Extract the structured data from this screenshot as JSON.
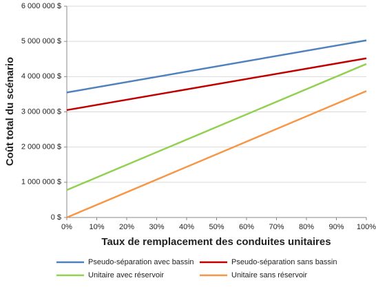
{
  "chart_data": {
    "type": "line",
    "x_label": "Taux de remplacement des conduites unitaires",
    "y_label": "Coût total du scénario",
    "x": [
      0,
      100
    ],
    "series": [
      {
        "name": "Pseudo-séparation avec bassin",
        "color": "#4f81bd",
        "values": [
          3550000,
          5030000
        ]
      },
      {
        "name": "Pseudo-séparation sans bassin",
        "color": "#c00000",
        "values": [
          3050000,
          4520000
        ]
      },
      {
        "name": "Unitaire avec réservoir",
        "color": "#92d050",
        "values": [
          780000,
          4360000
        ]
      },
      {
        "name": "Unitaire sans réservoir",
        "color": "#f79646",
        "values": [
          0,
          3590000
        ]
      }
    ],
    "xlim": [
      0,
      100
    ],
    "xticks": [
      {
        "value": 0,
        "label": "0%"
      },
      {
        "value": 10,
        "label": "10%"
      },
      {
        "value": 20,
        "label": "20%"
      },
      {
        "value": 30,
        "label": "30%"
      },
      {
        "value": 40,
        "label": "40%"
      },
      {
        "value": 50,
        "label": "50%"
      },
      {
        "value": 60,
        "label": "60%"
      },
      {
        "value": 70,
        "label": "70%"
      },
      {
        "value": 80,
        "label": "80%"
      },
      {
        "value": 90,
        "label": "90%"
      },
      {
        "value": 100,
        "label": "100%"
      }
    ],
    "ylim": [
      0,
      6000000
    ],
    "yticks": [
      {
        "value": 0,
        "label": "0 $"
      },
      {
        "value": 1000000,
        "label": "1 000 000 $"
      },
      {
        "value": 2000000,
        "label": "2 000 000 $"
      },
      {
        "value": 3000000,
        "label": "3 000 000 $"
      },
      {
        "value": 4000000,
        "label": "4 000 000 $"
      },
      {
        "value": 5000000,
        "label": "5 000 000 $"
      },
      {
        "value": 6000000,
        "label": "6 000 000 $"
      }
    ],
    "grid": true,
    "legend": "bottom"
  }
}
